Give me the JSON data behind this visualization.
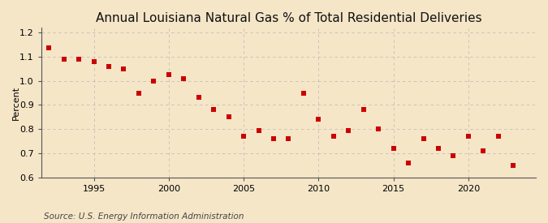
{
  "title": "Annual Louisiana Natural Gas % of Total Residential Deliveries",
  "ylabel": "Percent",
  "source": "Source: U.S. Energy Information Administration",
  "background_color": "#f5e6c8",
  "grid_color": "#aaaaaa",
  "marker_color": "#cc0000",
  "xlim": [
    1991.5,
    2024.5
  ],
  "ylim": [
    0.6,
    1.22
  ],
  "yticks": [
    0.6,
    0.7,
    0.8,
    0.9,
    1.0,
    1.1,
    1.2
  ],
  "xticks": [
    1995,
    2000,
    2005,
    2010,
    2015,
    2020
  ],
  "years": [
    1992,
    1993,
    1994,
    1995,
    1996,
    1997,
    1998,
    1999,
    2000,
    2001,
    2002,
    2003,
    2004,
    2005,
    2006,
    2007,
    2008,
    2009,
    2010,
    2011,
    2012,
    2013,
    2014,
    2015,
    2016,
    2017,
    2018,
    2019,
    2020,
    2021,
    2022,
    2023
  ],
  "values": [
    1.135,
    1.09,
    1.09,
    1.08,
    1.06,
    1.05,
    0.95,
    1.0,
    1.025,
    1.01,
    0.93,
    0.88,
    0.85,
    0.77,
    0.795,
    0.76,
    0.76,
    0.95,
    0.84,
    0.77,
    0.795,
    0.88,
    0.8,
    0.72,
    0.66,
    0.76,
    0.72,
    0.69,
    0.77,
    0.71,
    0.77,
    0.65
  ],
  "title_fontsize": 11,
  "axis_fontsize": 8,
  "source_fontsize": 7.5,
  "marker_size": 16
}
